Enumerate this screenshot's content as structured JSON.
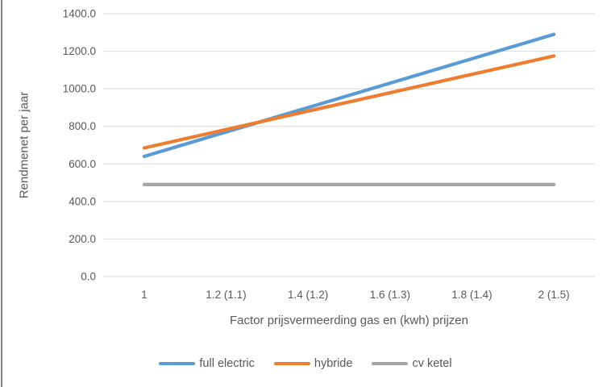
{
  "chart_data": {
    "type": "line",
    "title": "",
    "xlabel": "Factor prijsvermeerding gas en (kwh) prijzen",
    "ylabel": "Rendmenet per jaar",
    "categories": [
      "1",
      "1.2 (1.1)",
      "1.4 (1.2)",
      "1.6 (1.3)",
      "1.8 (1.4)",
      "2 (1.5)"
    ],
    "y_ticks": [
      "0.0",
      "200.0",
      "400.0",
      "600.0",
      "800.0",
      "1000.0",
      "1200.0",
      "1400.0"
    ],
    "ylim": [
      0,
      1400
    ],
    "y_tick_step": 200,
    "grid": true,
    "legend_position": "bottom",
    "series": [
      {
        "name": "full electric",
        "color": "#5B9BD5",
        "values": [
          640,
          770,
          900,
          1030,
          1160,
          1290
        ]
      },
      {
        "name": "hybride",
        "color": "#ED7D31",
        "values": [
          685,
          783,
          881,
          979,
          1077,
          1175
        ]
      },
      {
        "name": "cv ketel",
        "color": "#A5A5A5",
        "values": [
          490,
          490,
          490,
          490,
          490,
          490
        ]
      }
    ]
  },
  "colors": {
    "text": "#595959",
    "gridline": "#D9D9D9",
    "background": "#FFFFFF",
    "left_border": "#7F7F7F"
  }
}
